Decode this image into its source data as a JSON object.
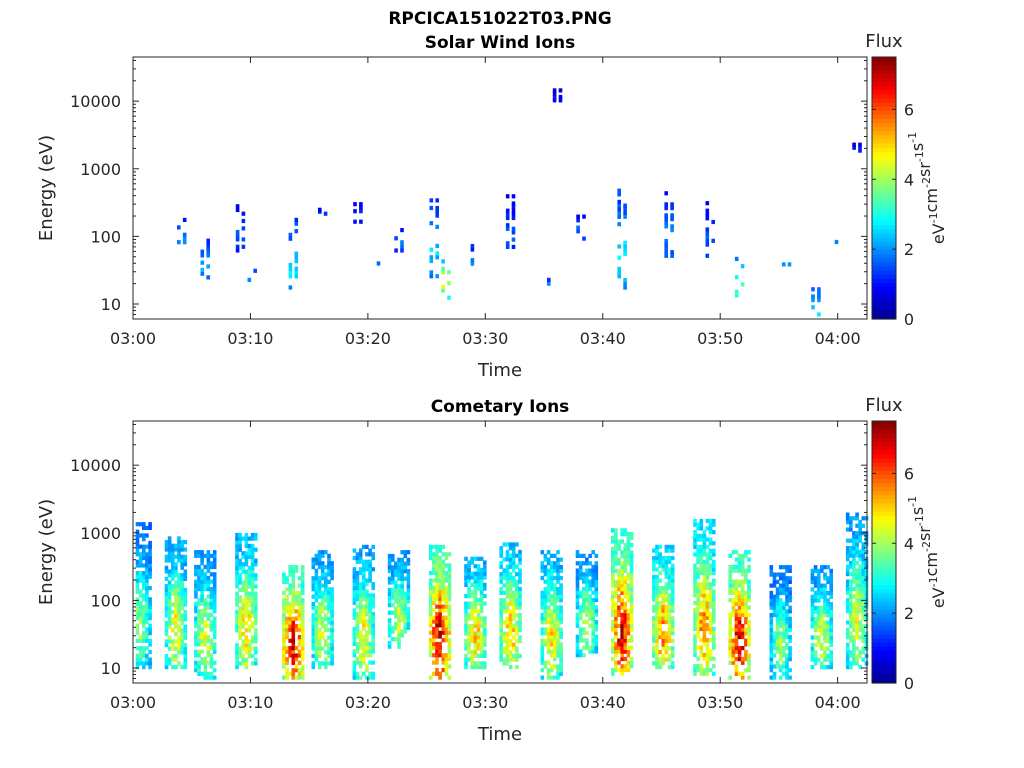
{
  "figure": {
    "title": "RPCICA151022T03.PNG"
  },
  "colors": {
    "colormap": [
      "#00008f",
      "#0000ff",
      "#0080ff",
      "#00ffff",
      "#80ff80",
      "#ffff00",
      "#ff8000",
      "#ff0000",
      "#800000"
    ],
    "axis": "#262626",
    "background": "#ffffff"
  },
  "chart_data": [
    {
      "type": "heatmap",
      "title": "Solar Wind Ions",
      "xlabel": "Time",
      "ylabel": "Energy (eV)",
      "x_ticks": [
        "03:00",
        "03:10",
        "03:20",
        "03:30",
        "03:40",
        "03:50",
        "04:00"
      ],
      "xlim": [
        "03:00",
        "04:02.5"
      ],
      "y_scale": "log",
      "y_ticks": [
        10,
        100,
        1000,
        10000
      ],
      "ylim": [
        6,
        45000
      ],
      "grid": false,
      "colorbar": {
        "label_top": "Flux",
        "unit": "eV-1 cm-2 sr-1 s-1",
        "ticks": [
          0,
          2,
          4,
          6
        ],
        "range": [
          0,
          7.5
        ]
      },
      "clusters": [
        {
          "time": "03:04",
          "e_min": 70,
          "e_max": 170,
          "flux": 2.3
        },
        {
          "time": "03:06",
          "e_min": 24,
          "e_max": 95,
          "flux": 2.5
        },
        {
          "time": "03:09",
          "e_min": 60,
          "e_max": 270,
          "flux": 1.8
        },
        {
          "time": "03:10",
          "e_min": 22,
          "e_max": 30,
          "flux": 2.8
        },
        {
          "time": "03:13.5",
          "e_min": 17,
          "e_max": 170,
          "flux": 3.0
        },
        {
          "time": "03:16",
          "e_min": 210,
          "e_max": 240,
          "flux": 1.8
        },
        {
          "time": "03:19",
          "e_min": 160,
          "e_max": 290,
          "flux": 1.7
        },
        {
          "time": "03:20.5",
          "e_min": 33,
          "e_max": 45,
          "flux": 2.5
        },
        {
          "time": "03:22.5",
          "e_min": 60,
          "e_max": 120,
          "flux": 2.0
        },
        {
          "time": "03:25.5",
          "e_min": 25,
          "e_max": 330,
          "flux": 2.8
        },
        {
          "time": "03:26.5",
          "e_min": 12,
          "e_max": 60,
          "flux": 5.0
        },
        {
          "time": "03:29",
          "e_min": 30,
          "e_max": 70,
          "flux": 2.5
        },
        {
          "time": "03:32",
          "e_min": 60,
          "e_max": 380,
          "flux": 1.8
        },
        {
          "time": "03:35.5",
          "e_min": 17,
          "e_max": 22,
          "flux": 3.0
        },
        {
          "time": "03:36",
          "e_min": 10000,
          "e_max": 14000,
          "flux": 1.2
        },
        {
          "time": "03:38",
          "e_min": 90,
          "e_max": 190,
          "flux": 2.0
        },
        {
          "time": "03:41.5",
          "e_min": 17,
          "e_max": 460,
          "flux": 3.0
        },
        {
          "time": "03:45.5",
          "e_min": 50,
          "e_max": 420,
          "flux": 2.2
        },
        {
          "time": "03:49",
          "e_min": 50,
          "e_max": 300,
          "flux": 1.8
        },
        {
          "time": "03:51.5",
          "e_min": 13,
          "e_max": 45,
          "flux": 4.0
        },
        {
          "time": "03:55.5",
          "e_min": 35,
          "e_max": 40,
          "flux": 2.5
        },
        {
          "time": "03:58",
          "e_min": 6,
          "e_max": 16,
          "flux": 3.3
        },
        {
          "time": "04:00",
          "e_min": 80,
          "e_max": 90,
          "flux": 2.5
        },
        {
          "time": "04:01.5",
          "e_min": 1800,
          "e_max": 2200,
          "flux": 1.5
        }
      ]
    },
    {
      "type": "heatmap",
      "title": "Cometary Ions",
      "xlabel": "Time",
      "ylabel": "Energy (eV)",
      "x_ticks": [
        "03:00",
        "03:10",
        "03:20",
        "03:30",
        "03:40",
        "03:50",
        "04:00"
      ],
      "xlim": [
        "03:00",
        "04:02.5"
      ],
      "y_scale": "log",
      "y_ticks": [
        10,
        100,
        1000,
        10000
      ],
      "ylim": [
        6,
        45000
      ],
      "grid": false,
      "colorbar": {
        "label_top": "Flux",
        "unit": "eV-1 cm-2 sr-1 s-1",
        "ticks": [
          0,
          2,
          4,
          6
        ],
        "range": [
          0,
          7.5
        ]
      },
      "clusters": [
        {
          "time": "03:00.5",
          "e_min": 10,
          "e_max": 1300,
          "flux": 3.8
        },
        {
          "time": "03:03.5",
          "e_min": 10,
          "e_max": 800,
          "flux": 4.6
        },
        {
          "time": "03:06",
          "e_min": 7,
          "e_max": 500,
          "flux": 4.4
        },
        {
          "time": "03:09.5",
          "e_min": 10,
          "e_max": 900,
          "flux": 4.9
        },
        {
          "time": "03:13.5",
          "e_min": 7,
          "e_max": 300,
          "flux": 6.7
        },
        {
          "time": "03:16",
          "e_min": 10,
          "e_max": 500,
          "flux": 4.4
        },
        {
          "time": "03:19.5",
          "e_min": 7,
          "e_max": 600,
          "flux": 4.6
        },
        {
          "time": "03:22.5",
          "e_min": 20,
          "e_max": 500,
          "flux": 4.3
        },
        {
          "time": "03:26",
          "e_min": 7,
          "e_max": 600,
          "flux": 6.9
        },
        {
          "time": "03:29",
          "e_min": 10,
          "e_max": 400,
          "flux": 5.0
        },
        {
          "time": "03:32",
          "e_min": 10,
          "e_max": 650,
          "flux": 5.1
        },
        {
          "time": "03:35.5",
          "e_min": 7,
          "e_max": 500,
          "flux": 4.8
        },
        {
          "time": "03:38.5",
          "e_min": 15,
          "e_max": 500,
          "flux": 4.2
        },
        {
          "time": "03:41.5",
          "e_min": 8,
          "e_max": 1050,
          "flux": 6.6
        },
        {
          "time": "03:45",
          "e_min": 10,
          "e_max": 600,
          "flux": 5.6
        },
        {
          "time": "03:48.5",
          "e_min": 8,
          "e_max": 1450,
          "flux": 5.5
        },
        {
          "time": "03:51.5",
          "e_min": 7,
          "e_max": 500,
          "flux": 6.7
        },
        {
          "time": "03:55",
          "e_min": 7,
          "e_max": 300,
          "flux": 3.8
        },
        {
          "time": "03:58.5",
          "e_min": 10,
          "e_max": 300,
          "flux": 4.4
        },
        {
          "time": "04:01.5",
          "e_min": 10,
          "e_max": 1800,
          "flux": 4.4
        }
      ]
    }
  ]
}
